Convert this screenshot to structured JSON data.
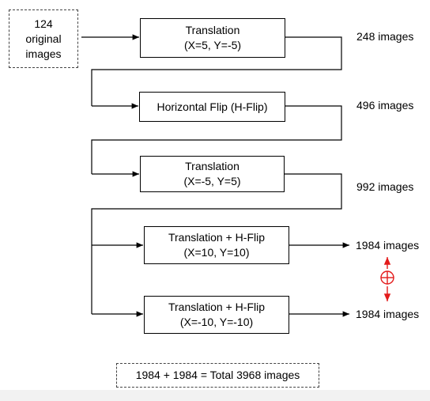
{
  "source": {
    "count": "124",
    "line1": "original",
    "line2": "images"
  },
  "steps": [
    {
      "title": "Translation",
      "params": "(X=5, Y=-5)",
      "result": "248 images"
    },
    {
      "title": "Horizontal Flip (H-Flip)",
      "params": "",
      "result": "496 images"
    },
    {
      "title": "Translation",
      "params": "(X=-5, Y=5)",
      "result": "992 images"
    },
    {
      "title": "Translation + H-Flip",
      "params": "(X=10, Y=10)",
      "result": "1984 images"
    },
    {
      "title": "Translation + H-Flip",
      "params": "(X=-10, Y=-10)",
      "result": "1984 images"
    }
  ],
  "combine_symbol": "⊕",
  "total": "1984 + 1984  = Total 3968 images",
  "colors": {
    "line": "#000000",
    "accent": "#e31b1b",
    "dashed_border": "#444444"
  }
}
